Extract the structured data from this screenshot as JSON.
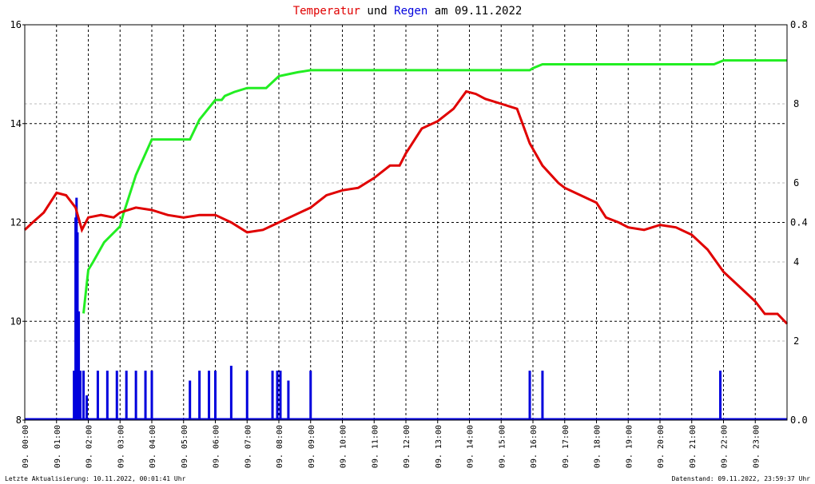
{
  "title": {
    "part1": "Temperatur",
    "part2": " und ",
    "part3": "Regen",
    "part4": " am 09.11.2022"
  },
  "footer": {
    "left": "Letzte Aktualisierung: 10.11.2022, 00:01:41 Uhr",
    "right": "Datenstand: 09.11.2022, 23:59:37 Uhr"
  },
  "colors": {
    "temperature": "#e00000",
    "rain": "#0000dd",
    "rain_sum": "#22ee22",
    "grid": "#000000",
    "minor_grid": "#bbbbbb",
    "right_axis_inner": "#22aa22"
  },
  "chart_data": {
    "type": "line",
    "x_unit": "hours",
    "x_range": [
      0,
      24
    ],
    "x_tick_labels": [
      "09. 00:00",
      "09. 01:00",
      "09. 02:00",
      "09. 03:00",
      "09. 04:00",
      "09. 05:00",
      "09. 06:00",
      "09. 07:00",
      "09. 08:00",
      "09. 09:00",
      "09. 10:00",
      "09. 11:00",
      "09. 12:00",
      "09. 13:00",
      "09. 14:00",
      "09. 15:00",
      "09. 16:00",
      "09. 17:00",
      "09. 18:00",
      "09. 19:00",
      "09. 20:00",
      "09. 21:00",
      "09. 22:00",
      "09. 23:00"
    ],
    "left_axis": {
      "range": [
        8,
        16
      ],
      "ticks": [
        "8",
        "10",
        "12",
        "14",
        "16"
      ]
    },
    "right_axis_outer": {
      "range": [
        0,
        0.8
      ],
      "ticks": [
        "0.0",
        "0.4",
        "0.8"
      ]
    },
    "right_axis_inner": {
      "range": [
        0,
        10
      ],
      "ticks": [
        "2",
        "4",
        "6",
        "8"
      ]
    },
    "series": [
      {
        "axis": "left",
        "points": [
          [
            0,
            11.85
          ],
          [
            0.25,
            12.0
          ],
          [
            0.6,
            12.2
          ],
          [
            1.0,
            12.6
          ],
          [
            1.3,
            12.55
          ],
          [
            1.6,
            12.3
          ],
          [
            1.8,
            11.85
          ],
          [
            2.0,
            12.1
          ],
          [
            2.4,
            12.15
          ],
          [
            2.8,
            12.1
          ],
          [
            3.0,
            12.2
          ],
          [
            3.5,
            12.3
          ],
          [
            4.0,
            12.25
          ],
          [
            4.5,
            12.15
          ],
          [
            5.0,
            12.1
          ],
          [
            5.5,
            12.15
          ],
          [
            6.0,
            12.15
          ],
          [
            6.5,
            12.0
          ],
          [
            7.0,
            11.8
          ],
          [
            7.5,
            11.85
          ],
          [
            8.0,
            12.0
          ],
          [
            8.5,
            12.15
          ],
          [
            9.0,
            12.3
          ],
          [
            9.5,
            12.55
          ],
          [
            10.0,
            12.65
          ],
          [
            10.5,
            12.7
          ],
          [
            11.0,
            12.9
          ],
          [
            11.5,
            13.15
          ],
          [
            11.8,
            13.15
          ],
          [
            12.0,
            13.4
          ],
          [
            12.5,
            13.9
          ],
          [
            13.0,
            14.05
          ],
          [
            13.5,
            14.3
          ],
          [
            13.9,
            14.65
          ],
          [
            14.2,
            14.6
          ],
          [
            14.5,
            14.5
          ],
          [
            15.0,
            14.4
          ],
          [
            15.5,
            14.3
          ],
          [
            15.9,
            13.6
          ],
          [
            16.3,
            13.15
          ],
          [
            16.8,
            12.8
          ],
          [
            17.0,
            12.7
          ],
          [
            17.5,
            12.55
          ],
          [
            18.0,
            12.4
          ],
          [
            18.3,
            12.1
          ],
          [
            18.7,
            12.0
          ],
          [
            19.0,
            11.9
          ],
          [
            19.5,
            11.85
          ],
          [
            20.0,
            11.95
          ],
          [
            20.5,
            11.9
          ],
          [
            21.0,
            11.75
          ],
          [
            21.5,
            11.45
          ],
          [
            22.0,
            11.0
          ],
          [
            22.5,
            10.7
          ],
          [
            23.0,
            10.4
          ],
          [
            23.3,
            10.15
          ],
          [
            23.7,
            10.15
          ],
          [
            24.0,
            9.95
          ]
        ]
      },
      {
        "axis": "right_inner",
        "points": [
          [
            1.85,
            2.7
          ],
          [
            2.0,
            3.8
          ],
          [
            2.15,
            4.0
          ],
          [
            2.5,
            4.5
          ],
          [
            3.0,
            4.9
          ],
          [
            3.1,
            5.2
          ],
          [
            3.5,
            6.2
          ],
          [
            4.0,
            7.1
          ],
          [
            4.2,
            7.1
          ],
          [
            5.2,
            7.1
          ],
          [
            5.5,
            7.6
          ],
          [
            6.0,
            8.1
          ],
          [
            6.2,
            8.1
          ],
          [
            6.3,
            8.2
          ],
          [
            6.6,
            8.3
          ],
          [
            7.0,
            8.4
          ],
          [
            7.6,
            8.4
          ],
          [
            8.0,
            8.7
          ],
          [
            8.3,
            8.75
          ],
          [
            8.6,
            8.8
          ],
          [
            9.0,
            8.85
          ],
          [
            9.5,
            8.85
          ],
          [
            10.0,
            8.85
          ],
          [
            15.9,
            8.85
          ],
          [
            16.0,
            8.9
          ],
          [
            16.3,
            9.0
          ],
          [
            21.7,
            9.0
          ],
          [
            22.0,
            9.1
          ],
          [
            24.0,
            9.1
          ]
        ]
      },
      {
        "axis": "right_outer",
        "points": [
          [
            1.55,
            0.1
          ],
          [
            1.6,
            0.41
          ],
          [
            1.63,
            0.45
          ],
          [
            1.66,
            0.38
          ],
          [
            1.7,
            0.22
          ],
          [
            1.75,
            0.1
          ],
          [
            1.85,
            0.1
          ],
          [
            1.95,
            0.05
          ],
          [
            2.3,
            0.1
          ],
          [
            2.6,
            0.1
          ],
          [
            2.9,
            0.1
          ],
          [
            3.2,
            0.1
          ],
          [
            3.5,
            0.1
          ],
          [
            3.8,
            0.1
          ],
          [
            4.0,
            0.1
          ],
          [
            5.2,
            0.08
          ],
          [
            5.5,
            0.1
          ],
          [
            5.8,
            0.1
          ],
          [
            6.0,
            0.1
          ],
          [
            6.5,
            0.11
          ],
          [
            7.0,
            0.1
          ],
          [
            7.8,
            0.1
          ],
          [
            7.95,
            0.1
          ],
          [
            8.05,
            0.1
          ],
          [
            8.3,
            0.08
          ],
          [
            9.0,
            0.1
          ],
          [
            15.9,
            0.1
          ],
          [
            16.3,
            0.1
          ],
          [
            21.9,
            0.1
          ]
        ]
      }
    ]
  }
}
